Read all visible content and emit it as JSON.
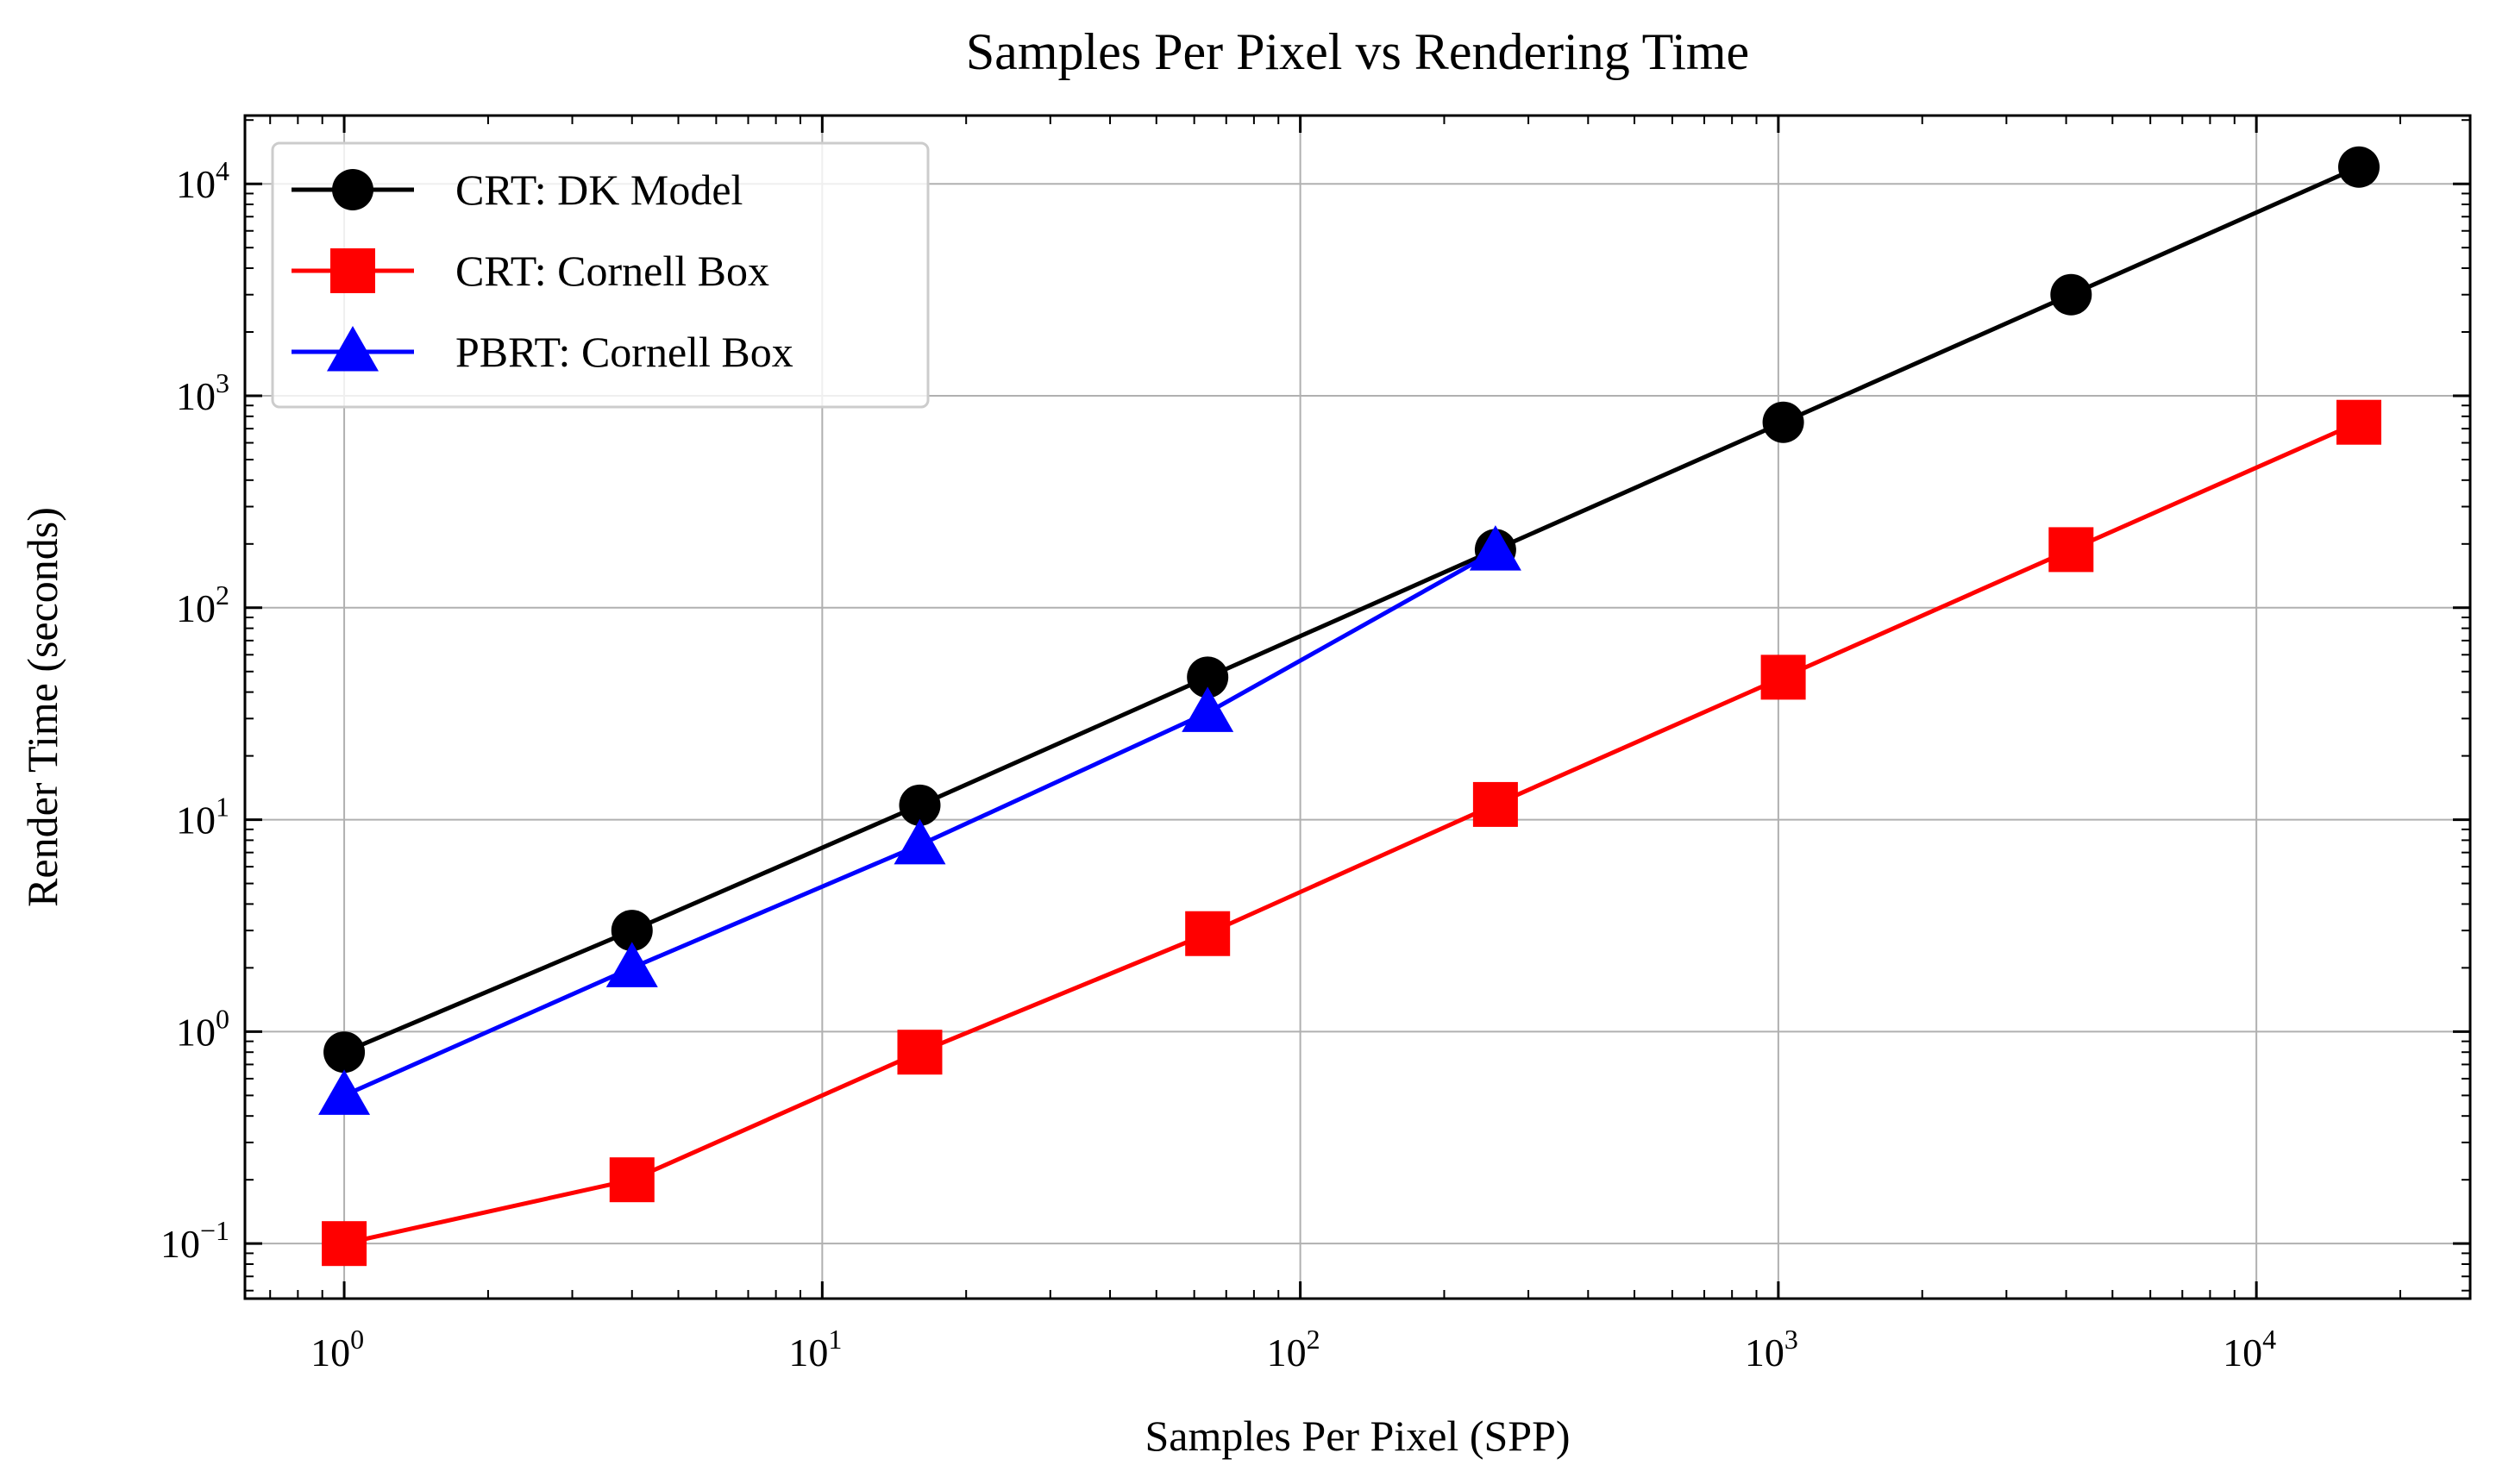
{
  "chart_data": {
    "type": "line",
    "title": "Samples Per Pixel vs Rendering Time",
    "xlabel": "Samples Per Pixel (SPP)",
    "ylabel": "Render Time (seconds)",
    "xscale": "log",
    "yscale": "log",
    "xlim": [
      0.62,
      28000
    ],
    "ylim": [
      0.055,
      21000
    ],
    "grid": true,
    "legend_position": "top-left",
    "x_ticks": [
      {
        "value": 1,
        "base": "10",
        "exp": "0"
      },
      {
        "value": 10,
        "base": "10",
        "exp": "1"
      },
      {
        "value": 100,
        "base": "10",
        "exp": "2"
      },
      {
        "value": 1000,
        "base": "10",
        "exp": "3"
      },
      {
        "value": 10000,
        "base": "10",
        "exp": "4"
      }
    ],
    "y_ticks": [
      {
        "value": 0.1,
        "base": "10",
        "exp": "−1"
      },
      {
        "value": 1,
        "base": "10",
        "exp": "0"
      },
      {
        "value": 10,
        "base": "10",
        "exp": "1"
      },
      {
        "value": 100,
        "base": "10",
        "exp": "2"
      },
      {
        "value": 1000,
        "base": "10",
        "exp": "3"
      },
      {
        "value": 10000,
        "base": "10",
        "exp": "4"
      }
    ],
    "series": [
      {
        "name": "CRT: DK Model",
        "color": "#000000",
        "marker": "circle",
        "x": [
          1,
          4,
          16,
          64,
          256,
          1024,
          4096,
          16384
        ],
        "y": [
          0.8,
          3.0,
          11.7,
          47,
          188,
          750,
          3000,
          12000
        ]
      },
      {
        "name": "CRT: Cornell Box",
        "color": "#ff0000",
        "marker": "square",
        "x": [
          1,
          4,
          16,
          64,
          256,
          1024,
          4096,
          16384
        ],
        "y": [
          0.1,
          0.2,
          0.8,
          2.9,
          11.8,
          47,
          188,
          750
        ]
      },
      {
        "name": "PBRT: Cornell Box",
        "color": "#0000ff",
        "marker": "triangle",
        "x": [
          1,
          4,
          16,
          64,
          256
        ],
        "y": [
          0.5,
          2.0,
          7.6,
          32,
          185
        ]
      }
    ]
  }
}
